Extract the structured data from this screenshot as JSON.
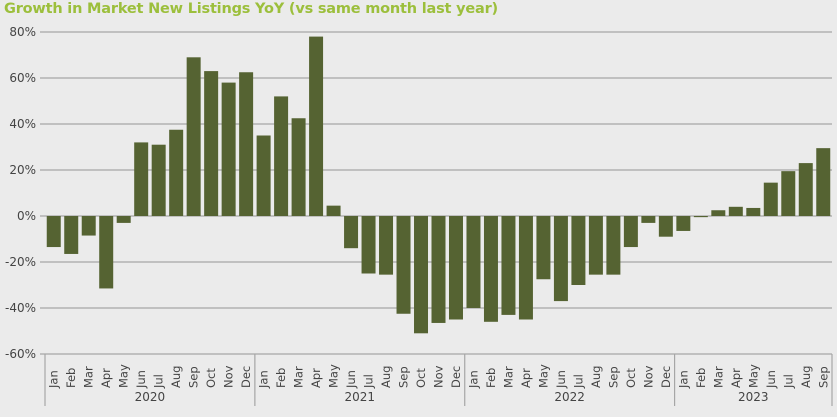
{
  "chart_data": {
    "type": "bar",
    "title": "Growth in Market New Listings YoY (vs same month last year)",
    "xlabel": "",
    "ylabel": "",
    "ylim": [
      -60,
      80
    ],
    "yticks": [
      "-60%",
      "-40%",
      "-20%",
      "0%",
      "20%",
      "40%",
      "60%",
      "80%"
    ],
    "ytick_values": [
      -60,
      -40,
      -20,
      0,
      20,
      40,
      60,
      80
    ],
    "grid": true,
    "bar_color": "#556332",
    "title_color": "#9cbf3c",
    "groups": [
      {
        "year": "2020",
        "months": [
          "Jan",
          "Feb",
          "Mar",
          "Apr",
          "May",
          "Jun",
          "Jul",
          "Aug",
          "Sep",
          "Oct",
          "Nov",
          "Dec"
        ],
        "values": [
          -13.5,
          -16.5,
          -8.5,
          -31.5,
          -3,
          32,
          31,
          37.5,
          69,
          63,
          58,
          62.5
        ]
      },
      {
        "year": "2021",
        "months": [
          "Jan",
          "Feb",
          "Mar",
          "Apr",
          "May",
          "Jun",
          "Jul",
          "Aug",
          "Sep",
          "Oct",
          "Nov",
          "Dec"
        ],
        "values": [
          35,
          52,
          42.5,
          78,
          4.5,
          -14,
          -25,
          -25.5,
          -42.5,
          -51,
          -46.5,
          -45
        ]
      },
      {
        "year": "2022",
        "months": [
          "Jan",
          "Feb",
          "Mar",
          "Apr",
          "May",
          "Jun",
          "Jul",
          "Aug",
          "Sep",
          "Oct",
          "Nov",
          "Dec"
        ],
        "values": [
          -40,
          -46,
          -43,
          -45,
          -27.5,
          -37,
          -30,
          -25.5,
          -25.5,
          -13.5,
          -3,
          -9
        ]
      },
      {
        "year": "2023",
        "months": [
          "Jan",
          "Feb",
          "Mar",
          "Apr",
          "May",
          "Jun",
          "Jul",
          "Aug",
          "Sep"
        ],
        "values": [
          -6.5,
          -0.5,
          2.5,
          4,
          3.5,
          14.5,
          19.5,
          23,
          29.5
        ]
      }
    ]
  }
}
